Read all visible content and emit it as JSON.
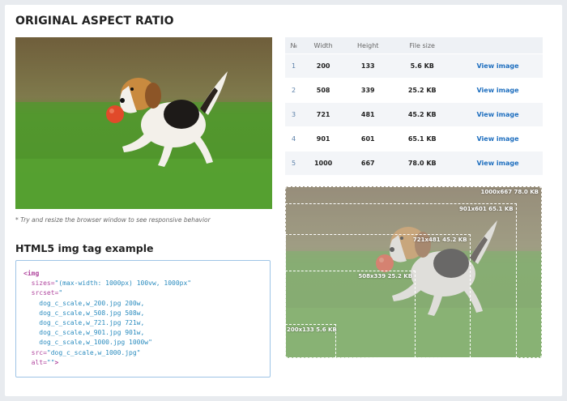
{
  "page": {
    "title": "ORIGINAL ASPECT RATIO",
    "note": "* Try and resize the browser window to see responsive behavior",
    "subtitle": "HTML5 img tag example"
  },
  "table": {
    "headers": [
      "№",
      "Width",
      "Height",
      "File size",
      ""
    ],
    "rows": [
      {
        "n": "1",
        "width": "200",
        "height": "133",
        "size": "5.6 KB",
        "link": "View image"
      },
      {
        "n": "2",
        "width": "508",
        "height": "339",
        "size": "25.2 KB",
        "link": "View image"
      },
      {
        "n": "3",
        "width": "721",
        "height": "481",
        "size": "45.2 KB",
        "link": "View image"
      },
      {
        "n": "4",
        "width": "901",
        "height": "601",
        "size": "65.1 KB",
        "link": "View image"
      },
      {
        "n": "5",
        "width": "1000",
        "height": "667",
        "size": "78.0 KB",
        "link": "View image"
      }
    ]
  },
  "code": {
    "open": "<img",
    "sizes_attr": "sizes=",
    "sizes_val": "\"(max-width: 1000px) 100vw, 1000px\"",
    "srcset_attr": "srcset=",
    "srcset_open": "\"",
    "srcset_lines": [
      "dog_c_scale,w_200.jpg 200w,",
      "dog_c_scale,w_508.jpg 508w,",
      "dog_c_scale,w_721.jpg 721w,",
      "dog_c_scale,w_901.jpg 901w,",
      "dog_c_scale,w_1000.jpg 1000w\""
    ],
    "src_attr": "src=",
    "src_val": "\"dog_c_scale,w_1000.jpg\"",
    "alt_attr": "alt=",
    "alt_val": "\"\"",
    "close": ">"
  },
  "frames": [
    {
      "label": "1000x667 78.0 KB",
      "scale": 1.0
    },
    {
      "label": "901x601 65.1 KB",
      "scale": 0.901
    },
    {
      "label": "721x481 45.2 KB",
      "scale": 0.721
    },
    {
      "label": "508x339 25.2 KB",
      "scale": 0.508
    },
    {
      "label": "200x133 5.6 KB",
      "scale": 0.2
    }
  ],
  "colors": {
    "accent_link": "#1f6fbf",
    "code_border": "#9ec4e6",
    "grass": "#3f8a2a"
  }
}
